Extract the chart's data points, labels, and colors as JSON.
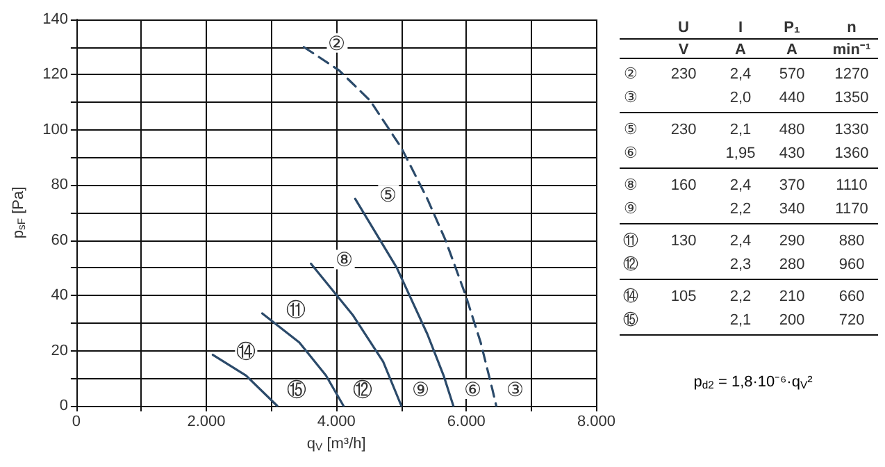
{
  "chart_data": [
    {
      "type": "line",
      "xlabel": "q$_{V}$ [m³/h]",
      "ylabel": "p$_{sF}$ [Pa]",
      "xlim": [
        0,
        8000
      ],
      "ylim": [
        0,
        140
      ],
      "xticks": [
        0,
        {
          "value": 1000,
          "label": null
        },
        {
          "value": 2000,
          "label": "2.000"
        },
        {
          "value": 3000,
          "label": null
        },
        {
          "value": 4000,
          "label": "4.000"
        },
        {
          "value": 5000,
          "label": null
        },
        {
          "value": 6000,
          "label": "6.000"
        },
        {
          "value": 7000,
          "label": null
        },
        {
          "value": 8000,
          "label": "8.000"
        }
      ],
      "yticks": [
        0,
        {
          "value": 10,
          "label": null
        },
        20,
        {
          "value": 30,
          "label": null
        },
        40,
        {
          "value": 50,
          "label": null
        },
        60,
        {
          "value": 70,
          "label": null
        },
        80,
        {
          "value": 90,
          "label": null
        },
        100,
        {
          "value": 110,
          "label": null
        },
        120,
        {
          "value": 130,
          "label": null
        },
        140
      ],
      "grid": true,
      "marker": "none",
      "series": [
        {
          "color": "#2b4a6a",
          "line_style": "dashed",
          "x": [
            3500,
            4040,
            4520,
            5000,
            5400,
            5680,
            5990,
            6220,
            6400,
            6460
          ],
          "values": [
            130,
            121.6,
            110.6,
            93.5,
            75,
            60,
            40,
            23,
            6,
            0
          ]
        },
        {
          "color": "#2b4a6a",
          "line_style": "solid",
          "x": [
            4290,
            4930,
            5400,
            5650,
            5800
          ],
          "values": [
            75,
            50,
            26,
            11,
            0
          ]
        },
        {
          "color": "#2b4a6a",
          "line_style": "solid",
          "x": [
            3610,
            4250,
            4720,
            5000
          ],
          "values": [
            51.5,
            33,
            16,
            0
          ]
        },
        {
          "color": "#2b4a6a",
          "line_style": "solid",
          "x": [
            2860,
            3430,
            3840,
            4110
          ],
          "values": [
            33.5,
            23,
            11,
            0
          ]
        },
        {
          "color": "#2b4a6a",
          "line_style": "solid",
          "x": [
            2100,
            2610,
            3090
          ],
          "values": [
            18.5,
            11,
            0
          ]
        }
      ],
      "annotations": [
        "②",
        "③",
        "⑤",
        "⑥",
        "⑧",
        "⑨",
        "⑪",
        "⑫",
        "⑭",
        "⑮"
      ]
    },
    {
      "type": "other",
      "categories": [
        "U",
        "I",
        "P₁",
        "n"
      ],
      "y_categories": [
        null,
        "②",
        "③",
        "⑤",
        "⑥",
        "⑧",
        "⑨",
        "⑪",
        "⑫",
        "⑭",
        "⑮"
      ],
      "cell_labels": [
        [
          "V",
          "A",
          "A",
          "min⁻¹"
        ],
        [
          "230",
          "2,4",
          "570",
          "1270"
        ],
        [
          null,
          "2,0",
          "440",
          "1350"
        ],
        [
          "230",
          "2,1",
          "480",
          "1330"
        ],
        [
          null,
          "1,95",
          "430",
          "1360"
        ],
        [
          "160",
          "2,4",
          "370",
          "1110"
        ],
        [
          null,
          "2,2",
          "340",
          "1170"
        ],
        [
          "130",
          "2,4",
          "290",
          "880"
        ],
        [
          null,
          "2,3",
          "280",
          "960"
        ],
        [
          "105",
          "2,2",
          "210",
          "660"
        ],
        [
          null,
          "2,1",
          "200",
          "720"
        ]
      ],
      "annotations": [
        "p$_{d2}$ = 1,8·10⁻⁶·q$_{V}$²"
      ]
    }
  ]
}
